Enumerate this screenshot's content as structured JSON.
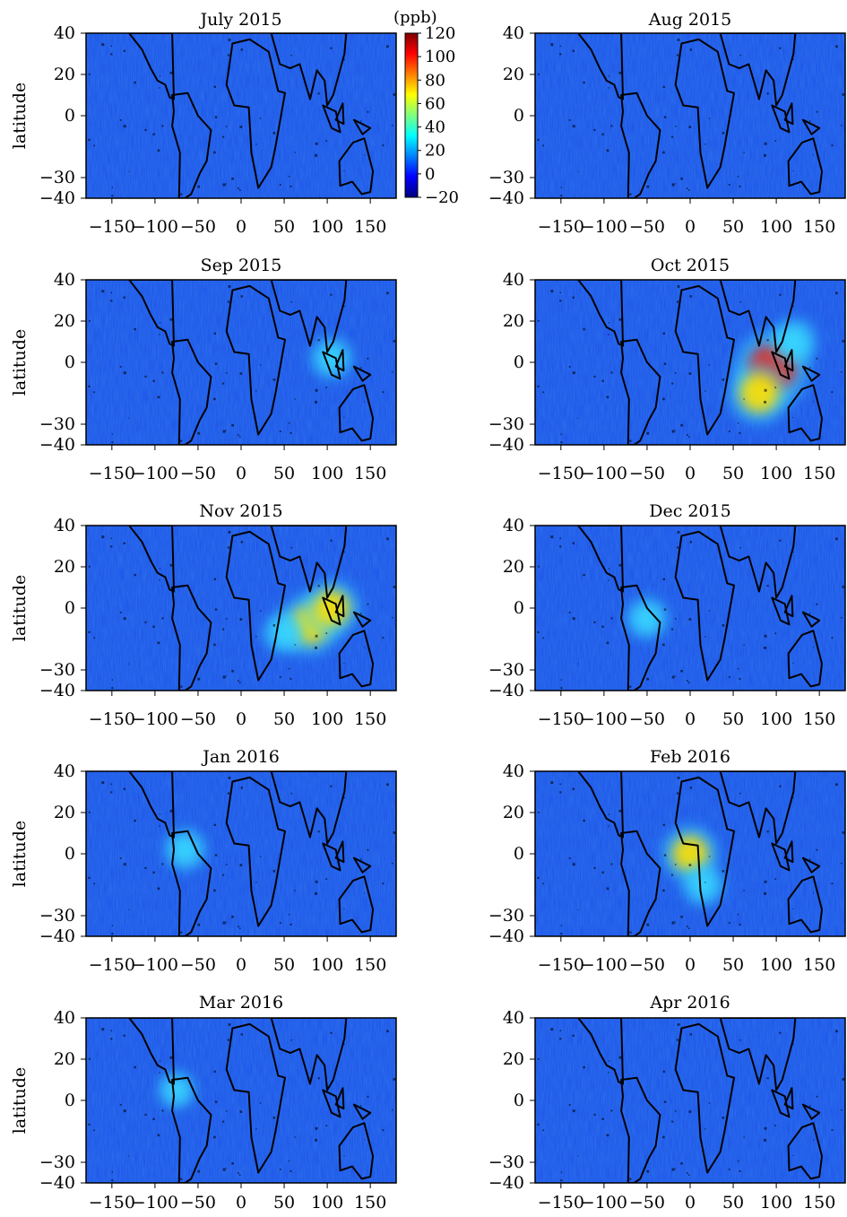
{
  "chart_data": {
    "type": "heatmap",
    "colorbar": {
      "unit": "(ppb)",
      "ticks": [
        120,
        100,
        80,
        60,
        40,
        20,
        0,
        -20
      ],
      "range": [
        -20,
        120
      ],
      "colors": [
        "#00007f",
        "#0000ff",
        "#007fff",
        "#00ffff",
        "#7fff7f",
        "#ffff00",
        "#ff7f00",
        "#ff0000",
        "#7f0000"
      ]
    },
    "x_ticks": [
      -150,
      -100,
      -50,
      0,
      50,
      100,
      150
    ],
    "y_ticks": [
      40,
      20,
      0,
      -30,
      -40
    ],
    "xlim": [
      -180,
      180
    ],
    "ylim": [
      -40,
      40
    ],
    "ylabel": "latitude",
    "background_color": "#1f56e8",
    "hotspot_colors": {
      "low": "#38d6ff",
      "mid": "#ffe000",
      "high": "#e8281a"
    },
    "panels": [
      {
        "title": "July 2015",
        "hotspots": []
      },
      {
        "title": "Aug 2015",
        "hotspots": []
      },
      {
        "title": "Sep 2015",
        "hotspots": [
          {
            "lon": 105,
            "lat": 2,
            "value": 40
          }
        ]
      },
      {
        "title": "Oct 2015",
        "hotspots": [
          {
            "lon": 95,
            "lat": -3,
            "value": 110
          },
          {
            "lon": 80,
            "lat": -15,
            "value": 80
          },
          {
            "lon": 120,
            "lat": 10,
            "value": 50
          }
        ]
      },
      {
        "title": "Nov 2015",
        "hotspots": [
          {
            "lon": 80,
            "lat": -8,
            "value": 80
          },
          {
            "lon": 105,
            "lat": 0,
            "value": 70
          },
          {
            "lon": 50,
            "lat": -12,
            "value": 40
          }
        ]
      },
      {
        "title": "Dec 2015",
        "hotspots": [
          {
            "lon": -50,
            "lat": -5,
            "value": 40
          }
        ]
      },
      {
        "title": "Jan 2016",
        "hotspots": [
          {
            "lon": -65,
            "lat": 2,
            "value": 40
          }
        ]
      },
      {
        "title": "Feb 2016",
        "hotspots": [
          {
            "lon": 0,
            "lat": 0,
            "value": 70
          },
          {
            "lon": 15,
            "lat": -15,
            "value": 40
          }
        ]
      },
      {
        "title": "Mar 2016",
        "hotspots": [
          {
            "lon": -75,
            "lat": 5,
            "value": 30
          }
        ]
      },
      {
        "title": "Apr 2016",
        "hotspots": []
      }
    ]
  }
}
